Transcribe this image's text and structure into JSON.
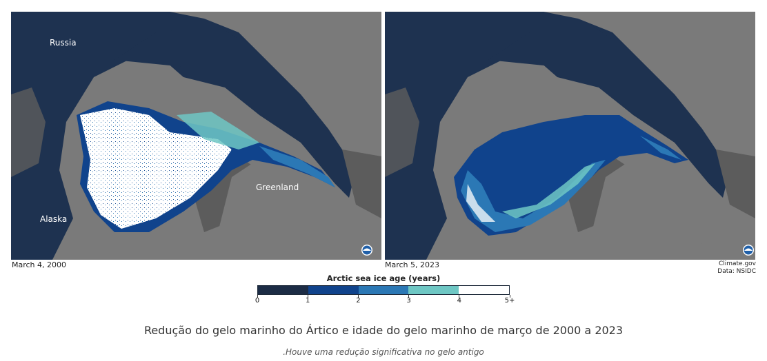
{
  "maps": [
    {
      "date": "March 4, 2000",
      "labels": {
        "russia": "Russia",
        "greenland": "Greenland",
        "alaska": "Alaska"
      }
    },
    {
      "date": "March 5, 2023"
    }
  ],
  "credit": {
    "line1": "Climate.gov",
    "line2": "Data: NSIDC"
  },
  "legend": {
    "title": "Arctic sea ice age (years)",
    "ticks": [
      "0",
      "1",
      "2",
      "3",
      "4",
      "5+"
    ],
    "colors": [
      "#1c2c45",
      "#10438c",
      "#2b78b5",
      "#6ec7c4",
      "#ffffff"
    ]
  },
  "colors": {
    "ocean": "#1e3250",
    "land": "#7a7a7a",
    "shelf": "#5c5c5c"
  },
  "caption": "Redução do gelo marinho do Ártico e idade do gelo marinho de março de 2000 a 2023",
  "subcaption": ".Houve uma redução significativa no gelo antigo"
}
